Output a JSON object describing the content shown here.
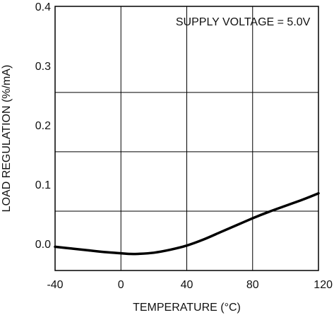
{
  "chart_data": {
    "type": "line",
    "title": "",
    "xlabel": "TEMPERATURE (°C)",
    "ylabel": "LOAD REGULATION (%/mA)",
    "xlim": [
      -40,
      120
    ],
    "ylim": [
      -0.045,
      0.4
    ],
    "x_ticks": [
      -40,
      0,
      40,
      80,
      120
    ],
    "x_tick_labels": [
      "-40",
      "0",
      "40",
      "80",
      "120"
    ],
    "y_ticks": [
      0.0,
      0.1,
      0.2,
      0.3,
      0.4
    ],
    "y_tick_labels": [
      "0.0",
      "0.1",
      "0.2",
      "0.3",
      "0.4"
    ],
    "grid_x": [
      0,
      40,
      80
    ],
    "grid_y": [
      0.055,
      0.155,
      0.255
    ],
    "grid": true,
    "legend": "none",
    "annotations": [
      {
        "text": "SUPPLY VOLTAGE = 5.0V",
        "x": 115,
        "y": 0.375
      }
    ],
    "series": [
      {
        "name": "",
        "x": [
          -40,
          -30,
          -20,
          -10,
          0,
          5,
          10,
          20,
          30,
          40,
          50,
          60,
          70,
          80,
          90,
          100,
          110,
          120
        ],
        "y": [
          -0.005,
          -0.008,
          -0.011,
          -0.014,
          -0.016,
          -0.017,
          -0.017,
          -0.015,
          -0.01,
          -0.003,
          0.007,
          0.019,
          0.031,
          0.043,
          0.054,
          0.064,
          0.074,
          0.085
        ]
      }
    ],
    "colors": {
      "line": "#000000",
      "grid": "#000000",
      "frame": "#000000"
    }
  }
}
